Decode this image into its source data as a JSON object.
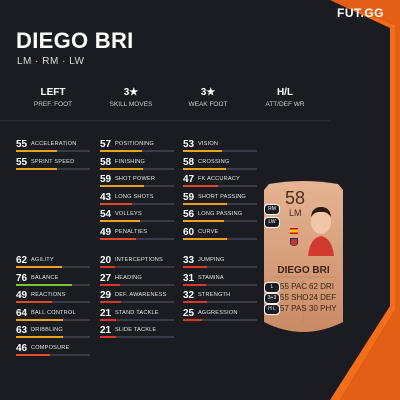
{
  "brand": "FUT.GG",
  "player": {
    "name": "DIEGO BRI",
    "positions": "LM · RM · LW"
  },
  "summary": [
    {
      "value": "LEFT",
      "label": "PREF. FOOT"
    },
    {
      "value": "3★",
      "label": "SKILL MOVES"
    },
    {
      "value": "3★",
      "label": "WEAK FOOT"
    },
    {
      "value": "H/L",
      "label": "ATT/DEF WR"
    }
  ],
  "stats": [
    {
      "value": "55",
      "label": "ACCELERATION",
      "level": 0.55,
      "color": "#e8a21e"
    },
    {
      "value": "55",
      "label": "SPRINT SPEED",
      "level": 0.55,
      "color": "#e8a21e"
    },
    {
      "value": "57",
      "label": "POSITIONING",
      "level": 0.57,
      "color": "#e8a21e"
    },
    {
      "value": "58",
      "label": "FINISHING",
      "level": 0.58,
      "color": "#e8a21e"
    },
    {
      "value": "59",
      "label": "SHOT POWER",
      "level": 0.59,
      "color": "#e8a21e"
    },
    {
      "value": "43",
      "label": "LONG SHOTS",
      "level": 0.43,
      "color": "#e04a2a"
    },
    {
      "value": "54",
      "label": "VOLLEYS",
      "level": 0.54,
      "color": "#e8a21e"
    },
    {
      "value": "49",
      "label": "PENALTIES",
      "level": 0.49,
      "color": "#e04a2a"
    },
    {
      "value": "53",
      "label": "VISION",
      "level": 0.53,
      "color": "#e8a21e"
    },
    {
      "value": "58",
      "label": "CROSSING",
      "level": 0.58,
      "color": "#e8a21e"
    },
    {
      "value": "47",
      "label": "FK ACCURACY",
      "level": 0.47,
      "color": "#e04a2a"
    },
    {
      "value": "59",
      "label": "SHORT PASSING",
      "level": 0.59,
      "color": "#e8a21e"
    },
    {
      "value": "56",
      "label": "LONG PASSING",
      "level": 0.56,
      "color": "#e8a21e"
    },
    {
      "value": "60",
      "label": "CURVE",
      "level": 0.6,
      "color": "#e8a21e"
    },
    {
      "value": "62",
      "label": "AGILITY",
      "level": 0.62,
      "color": "#e8a21e"
    },
    {
      "value": "76",
      "label": "BALANCE",
      "level": 0.76,
      "color": "#7cc23a"
    },
    {
      "value": "49",
      "label": "REACTIONS",
      "level": 0.49,
      "color": "#e04a2a"
    },
    {
      "value": "64",
      "label": "BALL CONTROL",
      "level": 0.64,
      "color": "#e8a21e"
    },
    {
      "value": "63",
      "label": "DRIBBLING",
      "level": 0.63,
      "color": "#e8a21e"
    },
    {
      "value": "46",
      "label": "COMPOSURE",
      "level": 0.46,
      "color": "#e04a2a"
    },
    {
      "value": "20",
      "label": "INTERCEPTIONS",
      "level": 0.2,
      "color": "#d9362c"
    },
    {
      "value": "27",
      "label": "HEADING",
      "level": 0.27,
      "color": "#d9362c"
    },
    {
      "value": "29",
      "label": "DEF. AWARENESS",
      "level": 0.29,
      "color": "#d9362c"
    },
    {
      "value": "21",
      "label": "STAND TACKLE",
      "level": 0.21,
      "color": "#d9362c"
    },
    {
      "value": "21",
      "label": "SLIDE TACKLE",
      "level": 0.21,
      "color": "#d9362c"
    },
    {
      "value": "33",
      "label": "JUMPING",
      "level": 0.33,
      "color": "#d9362c"
    },
    {
      "value": "31",
      "label": "STAMINA",
      "level": 0.31,
      "color": "#d9362c"
    },
    {
      "value": "32",
      "label": "STRENGTH",
      "level": 0.32,
      "color": "#d9362c"
    },
    {
      "value": "25",
      "label": "AGGRESSION",
      "level": 0.25,
      "color": "#d9362c"
    }
  ],
  "card": {
    "rating": "58",
    "position": "LM",
    "name": "DIEGO BRI",
    "alt_positions": [
      "RM",
      "LW"
    ],
    "pills": [
      "L",
      "3+3",
      "H L"
    ],
    "stats": [
      {
        "value": "55",
        "label": "PAC"
      },
      {
        "value": "62",
        "label": "DRI"
      },
      {
        "value": "55",
        "label": "SHO"
      },
      {
        "value": "24",
        "label": "DEF"
      },
      {
        "value": "57",
        "label": "PAS"
      },
      {
        "value": "30",
        "label": "PHY"
      }
    ]
  }
}
